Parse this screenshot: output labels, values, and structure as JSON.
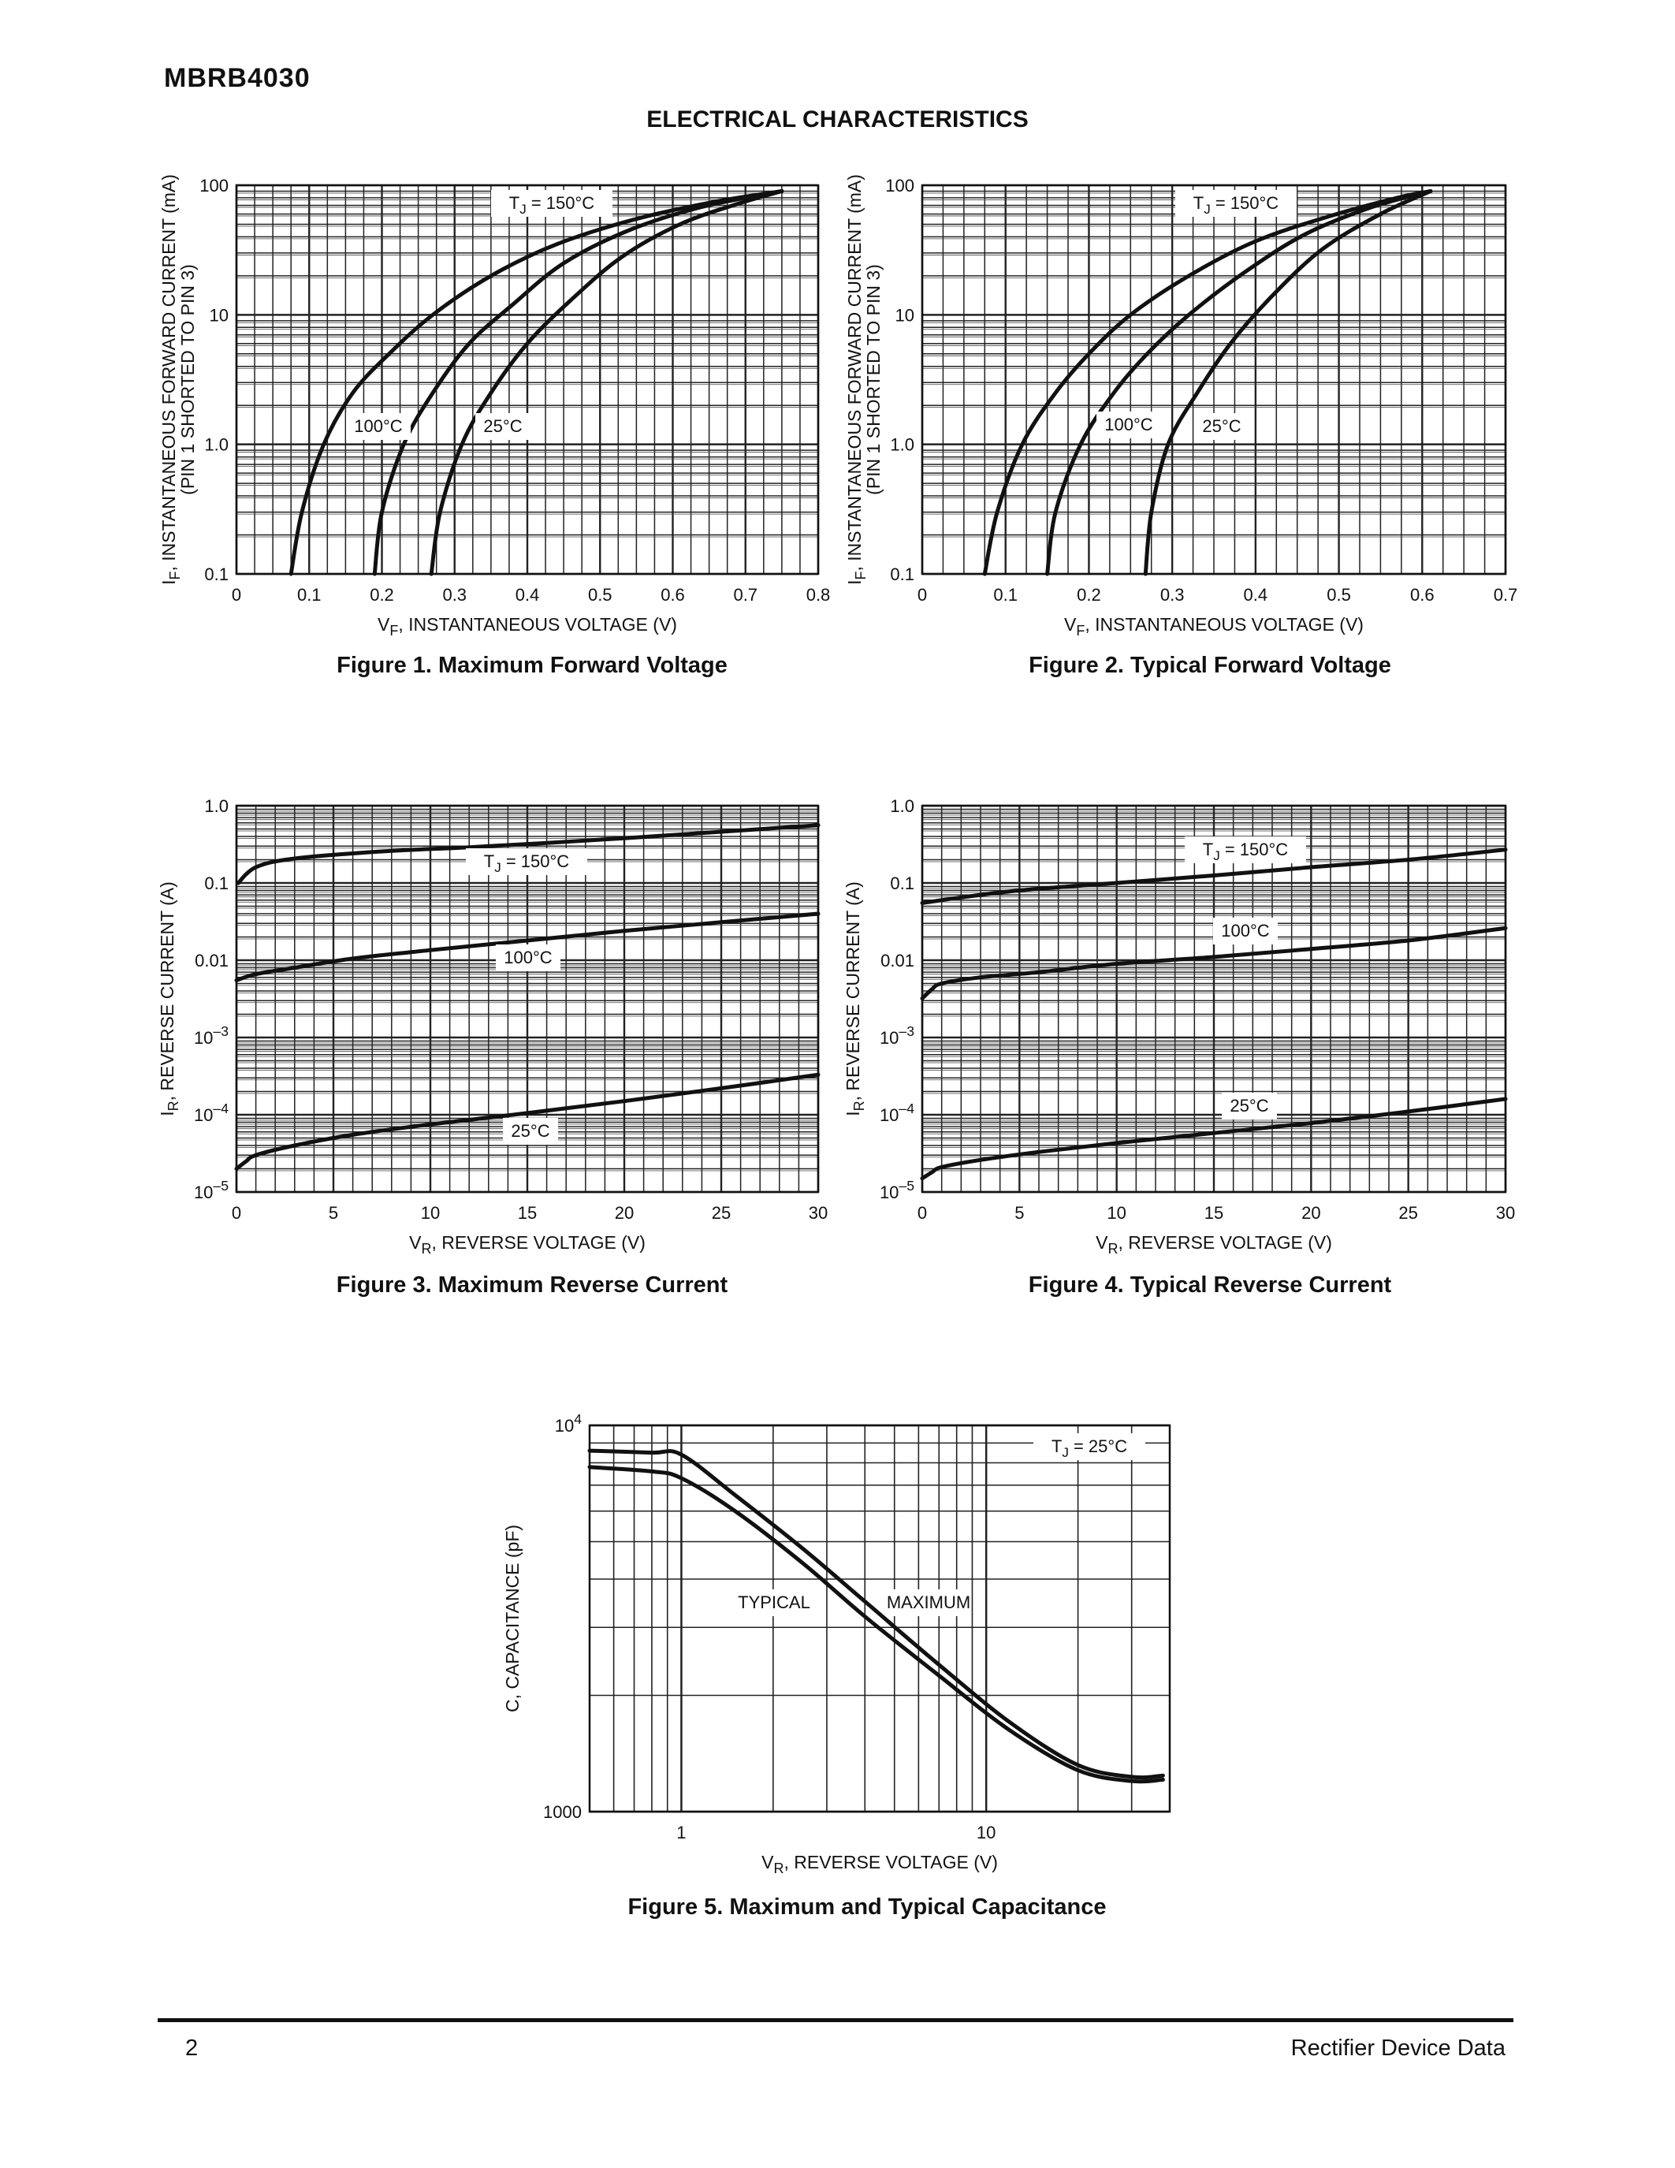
{
  "header": {
    "part_number": "MBRB4030",
    "section_title": "ELECTRICAL CHARACTERISTICS"
  },
  "footer": {
    "page_number": "2",
    "text": "Rectifier Device Data"
  },
  "chart_data": [
    {
      "id": "fig1",
      "type": "line",
      "caption": "Figure 1. Maximum Forward Voltage",
      "xlabel": "V_F, INSTANTANEOUS VOLTAGE (V)",
      "ylabel": "I_F, INSTANTANEOUS FORWARD CURRENT (mA)",
      "ylabel2": "(PIN 1 SHORTED TO PIN 3)",
      "x_scale": "linear",
      "y_scale": "log",
      "xlim": [
        0,
        0.8
      ],
      "ylim": [
        0.1,
        100
      ],
      "x_ticks": [
        "0",
        "0.1",
        "0.2",
        "0.3",
        "0.4",
        "0.5",
        "0.6",
        "0.7",
        "0.8"
      ],
      "y_ticks": [
        "0.1",
        "1.0",
        "10",
        "100"
      ],
      "grid": true,
      "series": [
        {
          "name": "T_J = 150°C",
          "x": [
            0.075,
            0.09,
            0.12,
            0.16,
            0.21,
            0.27,
            0.35,
            0.44,
            0.55,
            0.66,
            0.75
          ],
          "y": [
            0.1,
            0.3,
            1.0,
            2.5,
            5,
            10,
            20,
            35,
            55,
            75,
            90
          ]
        },
        {
          "name": "100°C",
          "x": [
            0.19,
            0.2,
            0.23,
            0.27,
            0.32,
            0.38,
            0.45,
            0.54,
            0.64,
            0.75
          ],
          "y": [
            0.1,
            0.3,
            1.0,
            2.5,
            6,
            12,
            25,
            45,
            68,
            90
          ]
        },
        {
          "name": "25°C",
          "x": [
            0.268,
            0.28,
            0.31,
            0.35,
            0.4,
            0.46,
            0.53,
            0.61,
            0.69,
            0.75
          ],
          "y": [
            0.1,
            0.3,
            1.0,
            2.5,
            6,
            13,
            28,
            50,
            72,
            90
          ]
        }
      ],
      "annotations": [
        "T_J = 150°C",
        "100°C",
        "25°C"
      ]
    },
    {
      "id": "fig2",
      "type": "line",
      "caption": "Figure 2. Typical Forward Voltage",
      "xlabel": "V_F, INSTANTANEOUS VOLTAGE (V)",
      "ylabel": "I_F, INSTANTANEOUS FORWARD CURRENT (mA)",
      "ylabel2": "(PIN 1 SHORTED TO PIN 3)",
      "x_scale": "linear",
      "y_scale": "log",
      "xlim": [
        0,
        0.7
      ],
      "ylim": [
        0.1,
        100
      ],
      "x_ticks": [
        "0",
        "0.1",
        "0.2",
        "0.3",
        "0.4",
        "0.5",
        "0.6",
        "0.7"
      ],
      "y_ticks": [
        "0.1",
        "1.0",
        "10",
        "100"
      ],
      "grid": true,
      "series": [
        {
          "name": "T_J = 150°C",
          "x": [
            0.075,
            0.09,
            0.12,
            0.16,
            0.2,
            0.25,
            0.32,
            0.4,
            0.49,
            0.57,
            0.61
          ],
          "y": [
            0.1,
            0.3,
            1.0,
            2.5,
            5,
            10,
            20,
            37,
            58,
            80,
            90
          ]
        },
        {
          "name": "100°C",
          "x": [
            0.15,
            0.16,
            0.19,
            0.23,
            0.27,
            0.32,
            0.39,
            0.46,
            0.54,
            0.61
          ],
          "y": [
            0.1,
            0.3,
            1.0,
            2.5,
            5,
            10,
            22,
            42,
            68,
            90
          ]
        },
        {
          "name": "25°C",
          "x": [
            0.268,
            0.275,
            0.295,
            0.33,
            0.37,
            0.42,
            0.48,
            0.55,
            0.61
          ],
          "y": [
            0.1,
            0.3,
            1.0,
            2.5,
            6,
            14,
            32,
            60,
            90
          ]
        }
      ],
      "annotations": [
        "T_J = 150°C",
        "100°C",
        "25°C"
      ]
    },
    {
      "id": "fig3",
      "type": "line",
      "caption": "Figure 3. Maximum Reverse Current",
      "xlabel": "V_R, REVERSE VOLTAGE (V)",
      "ylabel": "I_R, REVERSE CURRENT (A)",
      "x_scale": "linear",
      "y_scale": "log",
      "xlim": [
        0,
        30
      ],
      "ylim": [
        1e-05,
        1
      ],
      "x_ticks": [
        "0",
        "5",
        "10",
        "15",
        "20",
        "25",
        "30"
      ],
      "y_ticks": [
        "10^–5",
        "10^–4",
        "10^–3",
        "0.01",
        "0.1",
        "1.0"
      ],
      "grid": true,
      "series": [
        {
          "name": "T_J = 150°C",
          "x": [
            0.1,
            0.5,
            1,
            2,
            4,
            8,
            12,
            16,
            20,
            25,
            30
          ],
          "y": [
            0.1,
            0.13,
            0.16,
            0.19,
            0.22,
            0.26,
            0.29,
            0.33,
            0.38,
            0.46,
            0.56
          ]
        },
        {
          "name": "100°C",
          "x": [
            0,
            1,
            3,
            6,
            10,
            15,
            20,
            25,
            30
          ],
          "y": [
            0.0055,
            0.0066,
            0.008,
            0.0105,
            0.0135,
            0.018,
            0.024,
            0.031,
            0.04
          ]
        },
        {
          "name": "25°C",
          "x": [
            0,
            0.5,
            1,
            3,
            6,
            10,
            15,
            20,
            25,
            30
          ],
          "y": [
            2e-05,
            2.5e-05,
            3e-05,
            4e-05,
            5.5e-05,
            7.5e-05,
            0.000105,
            0.00015,
            0.00022,
            0.00033
          ]
        }
      ],
      "annotations": [
        "T_J = 150°C",
        "100°C",
        "25°C"
      ]
    },
    {
      "id": "fig4",
      "type": "line",
      "caption": "Figure 4. Typical Reverse Current",
      "xlabel": "V_R, REVERSE VOLTAGE (V)",
      "ylabel": "I_R, REVERSE CURRENT (A)",
      "x_scale": "linear",
      "y_scale": "log",
      "xlim": [
        0,
        30
      ],
      "ylim": [
        1e-05,
        1
      ],
      "x_ticks": [
        "0",
        "5",
        "10",
        "15",
        "20",
        "25",
        "30"
      ],
      "y_ticks": [
        "10^–5",
        "10^–4",
        "10^–3",
        "0.01",
        "0.1",
        "1.0"
      ],
      "grid": true,
      "series": [
        {
          "name": "T_J = 150°C",
          "x": [
            0,
            2,
            5,
            10,
            15,
            20,
            25,
            30
          ],
          "y": [
            0.055,
            0.065,
            0.08,
            0.1,
            0.125,
            0.16,
            0.2,
            0.27
          ]
        },
        {
          "name": "100°C",
          "x": [
            0,
            0.5,
            1,
            3,
            6,
            10,
            15,
            20,
            25,
            30
          ],
          "y": [
            0.0032,
            0.0042,
            0.005,
            0.006,
            0.007,
            0.009,
            0.011,
            0.014,
            0.018,
            0.026
          ]
        },
        {
          "name": "25°C",
          "x": [
            0,
            0.5,
            1,
            3,
            6,
            10,
            15,
            20,
            25,
            30
          ],
          "y": [
            1.5e-05,
            1.8e-05,
            2.1e-05,
            2.6e-05,
            3.3e-05,
            4.3e-05,
            5.8e-05,
            7.8e-05,
            0.00011,
            0.00016
          ]
        }
      ],
      "annotations": [
        "T_J = 150°C",
        "100°C",
        "25°C"
      ]
    },
    {
      "id": "fig5",
      "type": "line",
      "caption": "Figure 5. Maximum and Typical Capacitance",
      "xlabel": "V_R, REVERSE VOLTAGE (V)",
      "ylabel": "C, CAPACITANCE (pF)",
      "x_scale": "log",
      "y_scale": "log",
      "xlim": [
        0.5,
        40
      ],
      "ylim": [
        1000,
        10000
      ],
      "x_ticks": [
        "1",
        "10"
      ],
      "y_ticks": [
        "1000",
        "10^4"
      ],
      "grid": true,
      "series": [
        {
          "name": "MAXIMUM",
          "x": [
            0.5,
            0.8,
            1.0,
            1.5,
            2.5,
            4,
            7,
            12,
            20,
            30,
            38
          ],
          "y": [
            8600,
            8500,
            8400,
            6600,
            4800,
            3500,
            2400,
            1700,
            1320,
            1230,
            1240
          ]
        },
        {
          "name": "TYPICAL",
          "x": [
            0.5,
            0.8,
            1.0,
            1.5,
            2.5,
            4,
            7,
            12,
            20,
            30,
            38
          ],
          "y": [
            7800,
            7600,
            7300,
            6000,
            4400,
            3200,
            2250,
            1620,
            1280,
            1200,
            1210
          ]
        }
      ],
      "annotations": [
        "T_J = 25°C",
        "TYPICAL",
        "MAXIMUM"
      ]
    }
  ]
}
